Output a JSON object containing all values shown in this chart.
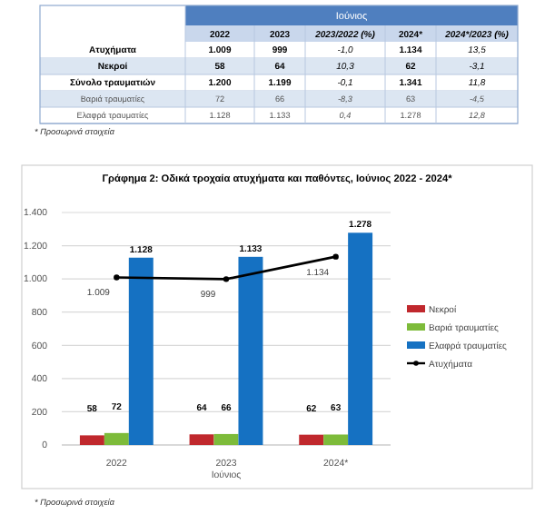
{
  "chart_data": [
    {
      "type": "other",
      "title": "Ιούνιος",
      "annotations": [
        "2022",
        "2023",
        "2023/2022 (%)",
        "2024*",
        "2024*/2023 (%)",
        "Ατυχήματα",
        "1.009",
        "999",
        "-1,0",
        "1.134",
        "13,5",
        "Νεκροί",
        "58",
        "64",
        "10,3",
        "62",
        "-3,1",
        "Σύνολο τραυματιών",
        "1.200",
        "1.199",
        "-0,1",
        "1.341",
        "11,8",
        "Βαριά τραυματίες",
        "72",
        "66",
        "-8,3",
        "63",
        "-4,5",
        "Ελαφρά τραυματίες",
        "1.128",
        "1.133",
        "0,4",
        "1.278",
        "12,8",
        "* Προσωρινά στοιχεία"
      ]
    },
    {
      "type": "bar",
      "title": "Γράφημα 2: Οδικά τροχαία ατυχήματα και παθόντες, Ιούνιος 2022 - 2024*",
      "xlabel": "Ιούνιος",
      "categories": [
        "2022",
        "2023",
        "2024*"
      ],
      "series": [
        {
          "name": "Νεκροί",
          "color": "#c0282d",
          "values": [
            58,
            64,
            62
          ],
          "value_labels": [
            "58",
            "64",
            "62"
          ]
        },
        {
          "name": "Βαριά τραυματίες",
          "color": "#7dbb3a",
          "values": [
            72,
            66,
            63
          ],
          "value_labels": [
            "72",
            "66",
            "63"
          ]
        },
        {
          "name": "Ελαφρά τραυματίες",
          "color": "#1571c2",
          "values": [
            1128,
            1133,
            1278
          ],
          "value_labels": [
            "1.128",
            "1.133",
            "1.278"
          ]
        },
        {
          "name": "Ατυχήματα",
          "type": "line",
          "color": "#000000",
          "marker": "circle",
          "values": [
            1009,
            999,
            1134
          ],
          "value_labels": [
            "1.009",
            "999",
            "1.134"
          ]
        }
      ],
      "ylim": [
        0,
        1400
      ],
      "yticks": [
        0,
        200,
        400,
        600,
        800,
        {
          "value": 1000,
          "label": "1.000"
        },
        {
          "value": 1200,
          "label": "1.200"
        },
        {
          "value": 1400,
          "label": "1.400"
        }
      ],
      "grid": "y",
      "legend": "right",
      "annotations": [
        "* Προσωρινά στοιχεία"
      ]
    }
  ]
}
